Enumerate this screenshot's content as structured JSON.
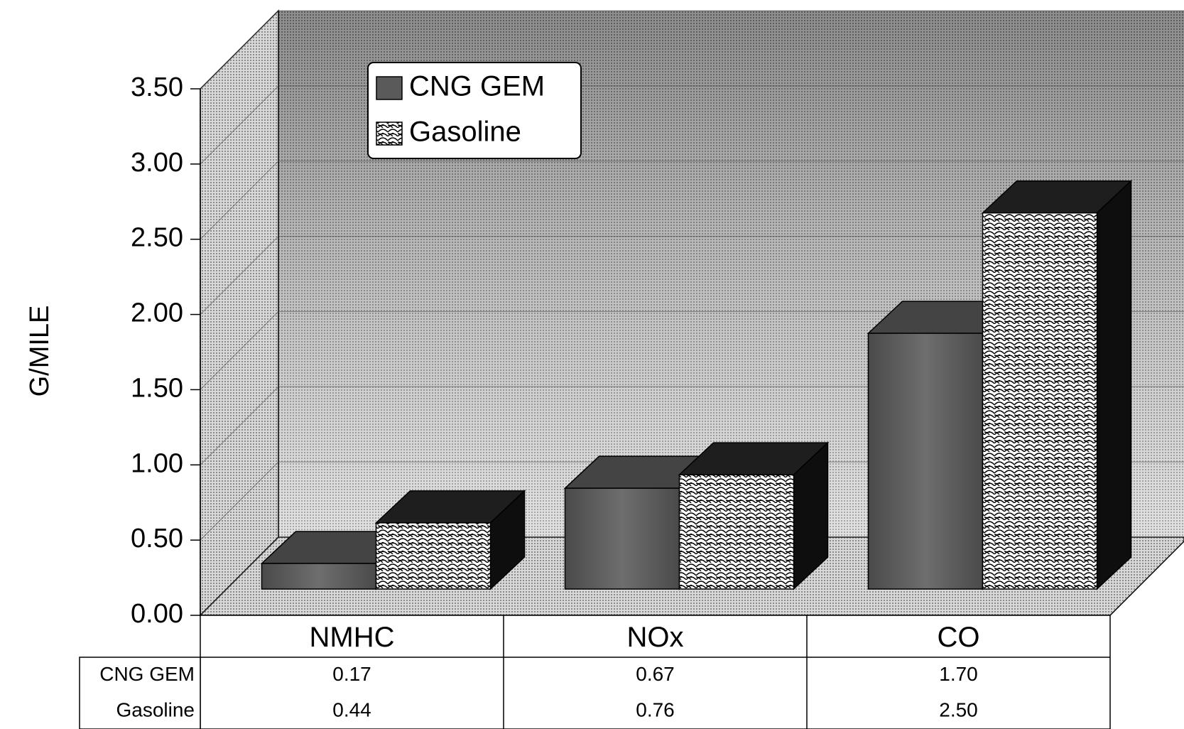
{
  "chart_data": {
    "type": "bar3d",
    "ylabel": "G/MILE",
    "categories": [
      "NMHC",
      "NOx",
      "CO"
    ],
    "series": [
      {
        "name": "CNG GEM",
        "color": "#5a5a5a",
        "values": [
          0.17,
          0.67,
          1.7
        ],
        "value_labels": [
          "0.17",
          "0.67",
          "1.70"
        ]
      },
      {
        "name": "Gasoline",
        "color": "#ffffff",
        "values": [
          0.44,
          0.76,
          2.5
        ],
        "value_labels": [
          "0.44",
          "0.76",
          "2.50"
        ]
      }
    ],
    "ylim": [
      0,
      3.5
    ],
    "yticks": [
      {
        "value": 0,
        "label": "0.00"
      },
      {
        "value": 0.5,
        "label": "0.50"
      },
      {
        "value": 1,
        "label": "1.00"
      },
      {
        "value": 1.5,
        "label": "1.50"
      },
      {
        "value": 2,
        "label": "2.00"
      },
      {
        "value": 2.5,
        "label": "2.50"
      },
      {
        "value": 3,
        "label": "3.00"
      },
      {
        "value": 3.5,
        "label": "3.50"
      }
    ],
    "grid": true,
    "legend": "top-left",
    "data_table": true
  }
}
